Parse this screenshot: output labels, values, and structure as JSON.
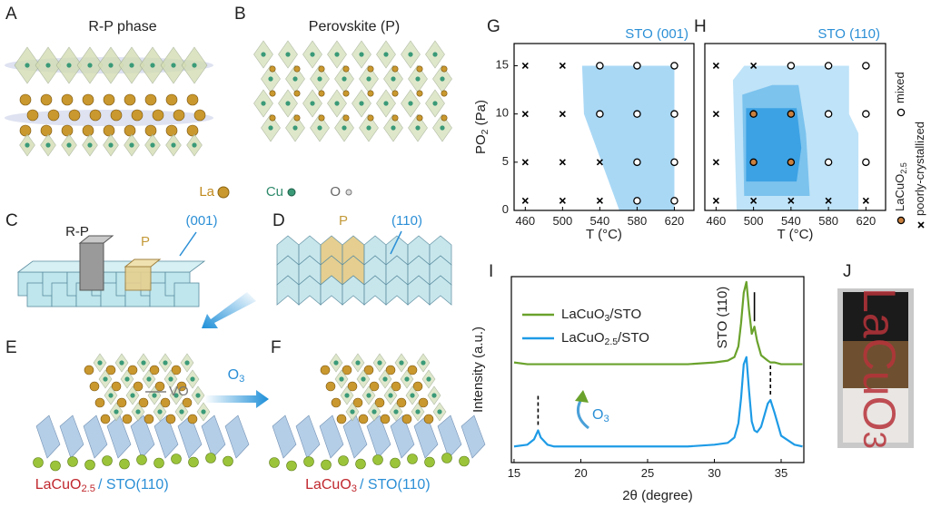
{
  "panels": {
    "labels": [
      "A",
      "B",
      "C",
      "D",
      "E",
      "F",
      "G",
      "H",
      "I",
      "J"
    ]
  },
  "illustrations": {
    "a_title": "R-P phase",
    "b_title": "Perovskite (P)",
    "legend_la": "La",
    "legend_cu": "Cu",
    "legend_o": "O",
    "c_rp": "R-P",
    "c_p": "P",
    "c_facet": "(001)",
    "d_p": "P",
    "d_facet": "(110)",
    "e_vacancy": "VO",
    "arrow_label": "O3",
    "e_film": "LaCuO2.5",
    "e_substrate": "/ STO(110)",
    "f_film": "LaCuO3",
    "f_substrate": "/ STO(110)"
  },
  "chart_data": [
    {
      "type": "scatter",
      "annotation": "STO (001)",
      "x_label": "T (°C)",
      "y_label": "PO2 (Pa)",
      "xlim": [
        448,
        641
      ],
      "ylim": [
        0,
        17.3
      ],
      "xticks": [
        460,
        500,
        540,
        580,
        620
      ],
      "yticks": [
        0,
        5,
        10,
        15
      ],
      "regions": [
        {
          "color": "#a9d8f5",
          "x": [
            521,
            620,
            620,
            561,
            523
          ],
          "y": [
            15,
            15,
            0,
            0,
            10
          ]
        }
      ],
      "series": [
        {
          "marker": "x",
          "color": "#000000",
          "x": [
            460,
            460,
            460,
            460,
            500,
            500,
            500,
            500,
            540,
            540
          ],
          "y": [
            1,
            5,
            10,
            15,
            1,
            5,
            10,
            15,
            1,
            5
          ]
        },
        {
          "marker": "circle",
          "color": "#ffffff",
          "x": [
            540,
            540,
            580,
            580,
            580,
            580,
            620,
            620,
            620,
            620
          ],
          "y": [
            10,
            15,
            1,
            5,
            10,
            15,
            1,
            5,
            10,
            15
          ]
        }
      ]
    },
    {
      "type": "scatter",
      "annotation": "STO (110)",
      "x_label": "T (°C)",
      "xlim": [
        448,
        641
      ],
      "ylim": [
        0,
        17.3
      ],
      "xticks": [
        460,
        500,
        540,
        580,
        620
      ],
      "regions": [
        {
          "color": "#bfe3f8",
          "x": [
            478,
            490,
            602,
            602,
            612,
            612,
            482
          ],
          "y": [
            13.5,
            15,
            15,
            10,
            8,
            0,
            0
          ]
        },
        {
          "color": "#7cc3ee",
          "x": [
            488,
            520,
            548,
            556,
            560,
            490
          ],
          "y": [
            12,
            13,
            13,
            8,
            1.5,
            1.5
          ]
        },
        {
          "color": "#3ca2e4",
          "x": [
            492,
            546,
            551,
            546,
            492
          ],
          "y": [
            10.6,
            10.6,
            6.5,
            3,
            3
          ]
        }
      ],
      "series": [
        {
          "name": "mixed",
          "marker": "circle",
          "color": "#ffffff",
          "x": [
            540,
            580,
            580,
            580,
            620,
            620,
            620
          ],
          "y": [
            15,
            5,
            10,
            15,
            5,
            10,
            15
          ]
        },
        {
          "name": "LaCuO2.5",
          "marker": "circle",
          "color": "#c9803f",
          "x": [
            500,
            500,
            540,
            540
          ],
          "y": [
            5,
            10,
            5,
            10
          ]
        },
        {
          "name": "poorly-crystallized",
          "marker": "x",
          "color": "#000000",
          "x": [
            460,
            460,
            460,
            460,
            500,
            500,
            540,
            580,
            620
          ],
          "y": [
            1,
            5,
            10,
            15,
            1,
            15,
            1,
            1,
            1
          ]
        }
      ]
    },
    {
      "type": "line",
      "x_label": "2θ (degree)",
      "y_label": "Intensity (a.u.)",
      "annotation": "STO (110)",
      "arrow_label": "O3",
      "xlim": [
        14.8,
        36.7
      ],
      "ylim": [
        0,
        10.4
      ],
      "xticks": [
        15,
        20,
        25,
        30,
        35
      ],
      "x": [
        15,
        16,
        16.5,
        16.8,
        17,
        17.5,
        18,
        20,
        22,
        25,
        28,
        30,
        31,
        31.5,
        31.8,
        32,
        32.2,
        32.4,
        32.6,
        32.8,
        33,
        33.2,
        33.5,
        34,
        34.2,
        34.5,
        35,
        36,
        36.6
      ],
      "series": [
        {
          "name": "LaCuO3/STO",
          "color": "#6aa22c",
          "values": [
            5.6,
            5.5,
            5.5,
            5.5,
            5.5,
            5.5,
            5.5,
            5.5,
            5.5,
            5.5,
            5.5,
            5.6,
            5.7,
            5.9,
            6.5,
            7.8,
            9.5,
            10.1,
            8.5,
            7.2,
            7.6,
            6.8,
            6.0,
            5.7,
            5.6,
            5.6,
            5.5,
            5.5,
            5.5
          ]
        },
        {
          "name": "LaCuO2.5/STO",
          "color": "#1e9be6",
          "values": [
            0.9,
            1.0,
            1.3,
            1.8,
            1.4,
            1.0,
            0.9,
            0.9,
            0.9,
            0.9,
            0.9,
            1.0,
            1.1,
            1.4,
            2.2,
            3.6,
            5.5,
            5.9,
            4.0,
            2.3,
            1.8,
            1.7,
            2.0,
            3.3,
            3.5,
            2.8,
            1.5,
            1.0,
            0.9
          ]
        }
      ],
      "peak_markers": [
        {
          "x": 16.8,
          "series": 1,
          "dashed": true
        },
        {
          "x": 33,
          "series": 0,
          "dashed": false
        },
        {
          "x": 34.2,
          "series": 1,
          "dashed": true
        }
      ]
    }
  ],
  "photo_j": {
    "text": "LaCuO3"
  }
}
